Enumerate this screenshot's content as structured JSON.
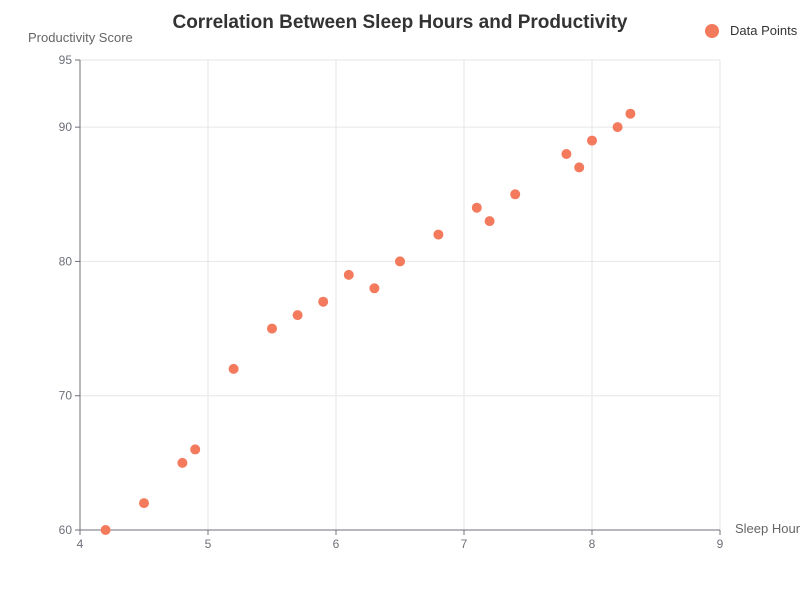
{
  "chart_data": {
    "type": "scatter",
    "title": "Correlation Between Sleep Hours and Productivity",
    "xlabel": "Sleep Hours",
    "ylabel": "Productivity Score",
    "xlim": [
      4,
      9
    ],
    "ylim": [
      60,
      95
    ],
    "x_ticks": [
      4,
      5,
      6,
      7,
      8,
      9
    ],
    "y_ticks": [
      60,
      70,
      80,
      90,
      95
    ],
    "grid": true,
    "legend_position": "top-right",
    "series": [
      {
        "name": "Data Points",
        "color": "#f47a5d",
        "points": [
          {
            "x": 4.2,
            "y": 60
          },
          {
            "x": 4.5,
            "y": 62
          },
          {
            "x": 4.8,
            "y": 65
          },
          {
            "x": 4.9,
            "y": 66
          },
          {
            "x": 5.2,
            "y": 72
          },
          {
            "x": 5.5,
            "y": 75
          },
          {
            "x": 5.7,
            "y": 76
          },
          {
            "x": 5.9,
            "y": 77
          },
          {
            "x": 6.1,
            "y": 79
          },
          {
            "x": 6.3,
            "y": 78
          },
          {
            "x": 6.5,
            "y": 80
          },
          {
            "x": 6.8,
            "y": 82
          },
          {
            "x": 7.1,
            "y": 84
          },
          {
            "x": 7.2,
            "y": 83
          },
          {
            "x": 7.4,
            "y": 85
          },
          {
            "x": 7.8,
            "y": 88
          },
          {
            "x": 7.9,
            "y": 87
          },
          {
            "x": 8.0,
            "y": 89
          },
          {
            "x": 8.2,
            "y": 90
          },
          {
            "x": 8.3,
            "y": 91
          }
        ]
      }
    ]
  }
}
